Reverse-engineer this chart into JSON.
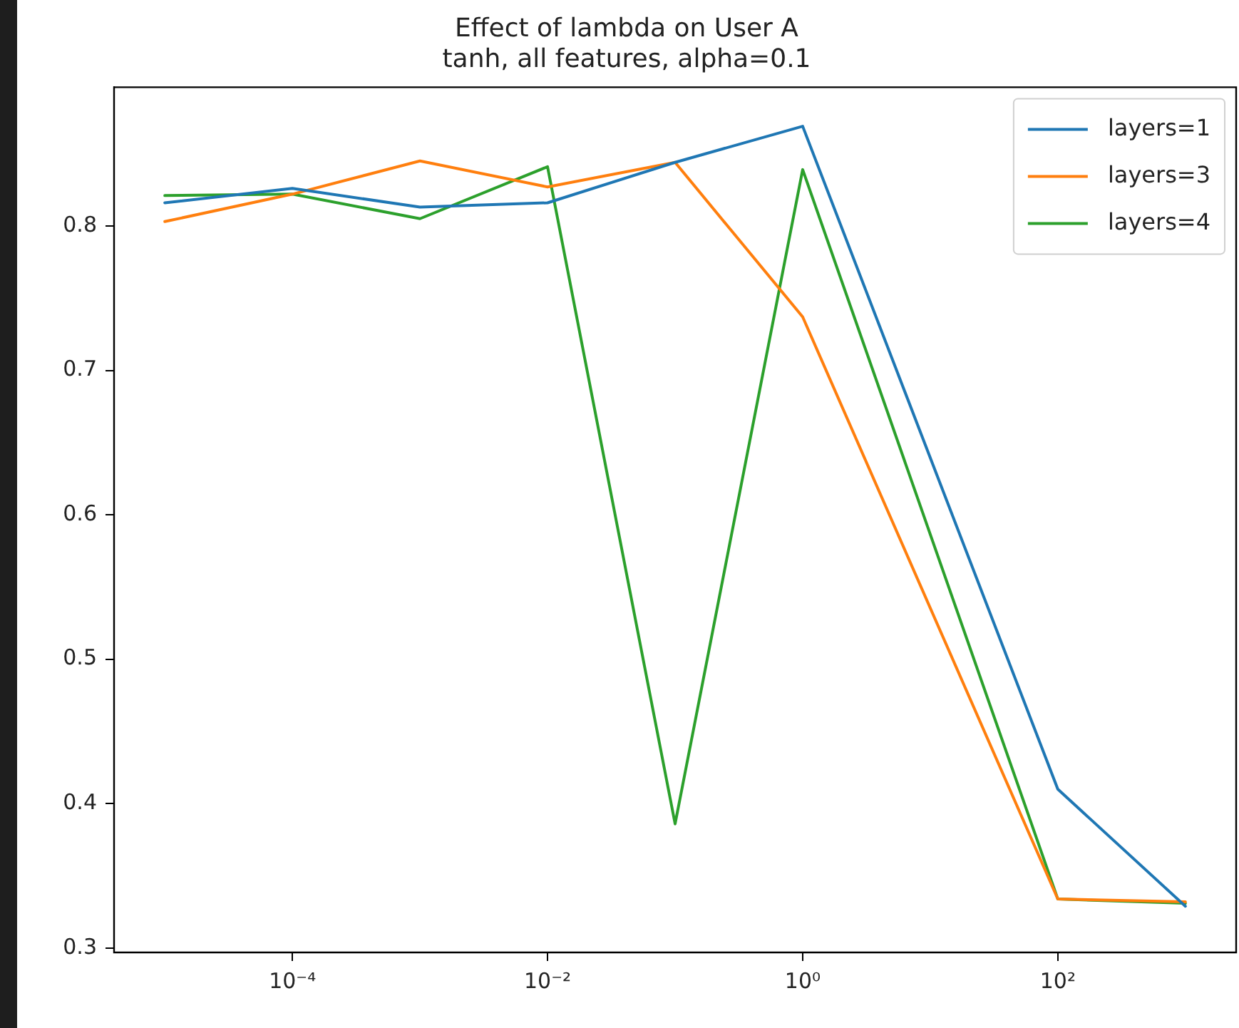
{
  "chart_data": {
    "type": "line",
    "title": "Effect of lambda on User A",
    "subtitle": "tanh, all features, alpha=0.1",
    "x": [
      1e-05,
      0.0001,
      0.001,
      0.01,
      0.1,
      1,
      100,
      1000
    ],
    "series": [
      {
        "name": "layers=1",
        "color": "#1f77b4",
        "values": [
          0.816,
          0.826,
          0.813,
          0.816,
          0.844,
          0.869,
          0.41,
          0.329
        ]
      },
      {
        "name": "layers=3",
        "color": "#ff7f0e",
        "values": [
          0.803,
          0.822,
          0.845,
          0.827,
          0.844,
          0.737,
          0.334,
          0.332
        ]
      },
      {
        "name": "layers=4",
        "color": "#2ca02c",
        "values": [
          0.821,
          0.822,
          0.805,
          0.841,
          0.386,
          0.839,
          0.334,
          0.331
        ]
      }
    ],
    "log": "x",
    "xlim": [
      4e-06,
      2500
    ],
    "xticks": [
      {
        "value": 0.0001,
        "label": "10⁻⁴"
      },
      {
        "value": 0.01,
        "label": "10⁻²"
      },
      {
        "value": 1,
        "label": "10⁰"
      },
      {
        "value": 100,
        "label": "10²"
      }
    ],
    "ylim": [
      0.297,
      0.896
    ],
    "yticks": [
      0.3,
      0.4,
      0.5,
      0.6,
      0.7,
      0.8
    ],
    "grid": false,
    "legend": "top right",
    "marker": "none",
    "line_style": "solid"
  }
}
